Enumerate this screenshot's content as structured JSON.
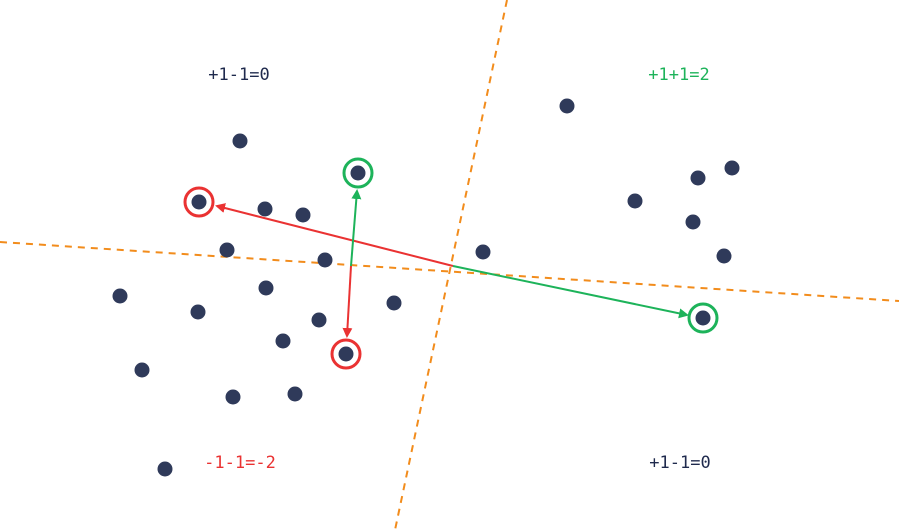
{
  "colors": {
    "point": "#2f3a5a",
    "divider": "#f28c1c",
    "positive": "#1db35a",
    "negative": "#ea3232",
    "neutral_text": "#1f2a4d"
  },
  "quadrant_labels": {
    "top_left": "+1-1=0",
    "top_right": "+1+1=2",
    "bottom_left": "-1-1=-2",
    "bottom_right": "+1-1=0"
  }
}
